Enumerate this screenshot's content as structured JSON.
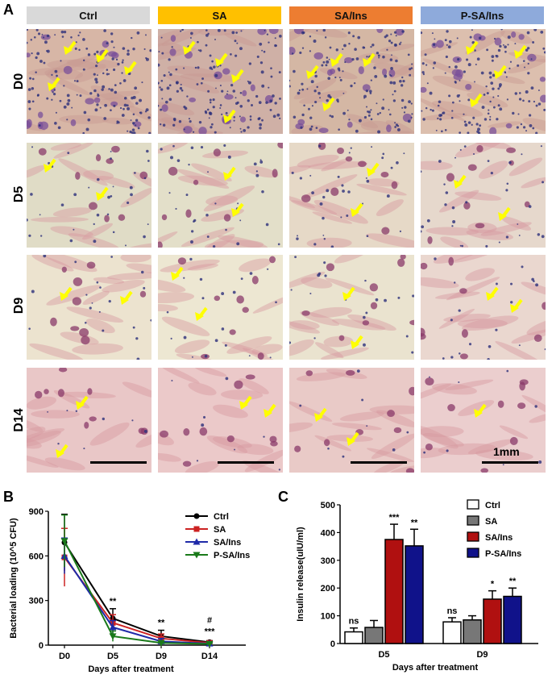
{
  "figure": {
    "panel_a_label": "A",
    "panel_b_label": "B",
    "panel_c_label": "C",
    "groups": [
      {
        "label": "Ctrl",
        "color": "#d9d9d9"
      },
      {
        "label": "SA",
        "color": "#ffc000"
      },
      {
        "label": "SA/Ins",
        "color": "#ed7d31"
      },
      {
        "label": "P-SA/Ins",
        "color": "#8eaadb"
      }
    ],
    "days": [
      "D0",
      "D5",
      "D9",
      "D14"
    ],
    "scale_label": "1mm"
  },
  "chart_data": [
    {
      "type": "line",
      "xlabel": "Days after treatment",
      "ylabel": "Bacterial loading (10^5 CFU)",
      "categories": [
        "D0",
        "D5",
        "D9",
        "D14"
      ],
      "ylim": [
        0,
        900
      ],
      "yticks": [
        0,
        300,
        600,
        900
      ],
      "legend_position": "right",
      "series": [
        {
          "name": "Ctrl",
          "color": "#000000",
          "marker": "circle",
          "values": [
            690,
            180,
            60,
            20
          ],
          "err": [
            190,
            65,
            40,
            10
          ]
        },
        {
          "name": "SA",
          "color": "#cc2222",
          "marker": "square",
          "values": [
            590,
            150,
            45,
            15
          ],
          "err": [
            195,
            55,
            30,
            8
          ]
        },
        {
          "name": "SA/Ins",
          "color": "#1f2aa8",
          "marker": "triangle",
          "values": [
            600,
            120,
            25,
            10
          ],
          "err": [
            120,
            45,
            20,
            6
          ]
        },
        {
          "name": "P-SA/Ins",
          "color": "#1a7a1a",
          "marker": "triangle-down",
          "values": [
            700,
            60,
            15,
            8
          ],
          "err": [
            175,
            35,
            12,
            5
          ]
        }
      ],
      "annotations": [
        {
          "category": "D5",
          "text": "**"
        },
        {
          "category": "D9",
          "text": "**"
        },
        {
          "category": "D14",
          "text": "#"
        },
        {
          "category": "D14",
          "text": "***"
        }
      ]
    },
    {
      "type": "bar",
      "xlabel": "Days after treatment",
      "ylabel": "Insulin release(uIU/ml)",
      "categories": [
        "D5",
        "D9"
      ],
      "ylim": [
        0,
        500
      ],
      "yticks": [
        0,
        100,
        200,
        300,
        400,
        500
      ],
      "legend_position": "top-right",
      "series": [
        {
          "name": "Ctrl",
          "color": "#ffffff",
          "values": [
            42,
            78
          ],
          "err": [
            14,
            15
          ]
        },
        {
          "name": "SA",
          "color": "#777777",
          "values": [
            58,
            85
          ],
          "err": [
            25,
            15
          ]
        },
        {
          "name": "SA/Ins",
          "color": "#b01010",
          "values": [
            375,
            160
          ],
          "err": [
            55,
            30
          ]
        },
        {
          "name": "P-SA/Ins",
          "color": "#10128a",
          "values": [
            352,
            170
          ],
          "err": [
            60,
            30
          ]
        }
      ],
      "annotations": [
        {
          "category": "D5",
          "series": "Ctrl",
          "text": "ns"
        },
        {
          "category": "D5",
          "series": "SA/Ins",
          "text": "***"
        },
        {
          "category": "D5",
          "series": "P-SA/Ins",
          "text": "**"
        },
        {
          "category": "D9",
          "series": "Ctrl",
          "text": "ns"
        },
        {
          "category": "D9",
          "series": "SA/Ins",
          "text": "*"
        },
        {
          "category": "D9",
          "series": "P-SA/Ins",
          "text": "**"
        }
      ]
    }
  ]
}
